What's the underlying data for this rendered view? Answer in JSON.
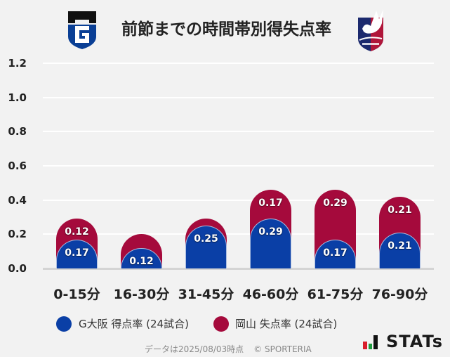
{
  "header": {
    "title": "前節までの時間帯別得失点率",
    "left_logo": "gamba-osaka-crest-icon",
    "right_logo": "fagiano-okayama-crest-icon"
  },
  "chart_data": {
    "type": "bar",
    "stacked": true,
    "title": "前節までの時間帯別得失点率",
    "xlabel": "",
    "ylabel": "",
    "ylim": [
      0,
      1.2
    ],
    "yticks": [
      "0.0",
      "0.2",
      "0.4",
      "0.6",
      "0.8",
      "1.0",
      "1.2"
    ],
    "grid": true,
    "legend_position": "bottom",
    "categories": [
      "0-15分",
      "16-30分",
      "31-45分",
      "46-60分",
      "61-75分",
      "76-90分"
    ],
    "series": [
      {
        "name": "G大阪 得点率 (24試合)",
        "color": "#0a3fa6",
        "values": [
          0.17,
          0.12,
          0.25,
          0.29,
          0.17,
          0.21
        ],
        "labels": [
          "0.17",
          "0.12",
          "0.25",
          "0.29",
          "0.17",
          "0.21"
        ]
      },
      {
        "name": "岡山 失点率 (24試合)",
        "color": "#a50a3c",
        "values": [
          0.12,
          0.08,
          0.04,
          0.17,
          0.29,
          0.21
        ],
        "labels": [
          "0.12",
          "",
          "",
          "0.17",
          "0.29",
          "0.21"
        ]
      }
    ]
  },
  "legend": {
    "items": [
      {
        "label": "G大阪 得点率 (24試合)",
        "color": "#0a3fa6"
      },
      {
        "label": "岡山 失点率 (24試合)",
        "color": "#a50a3c"
      }
    ]
  },
  "footer": {
    "note": "データは2025/08/03時点",
    "copyright": "© SPORTERIA",
    "brand": "STATs",
    "brand_colors": {
      "red": "#d91e2b",
      "green": "#1f9c3f",
      "black": "#111111"
    }
  }
}
